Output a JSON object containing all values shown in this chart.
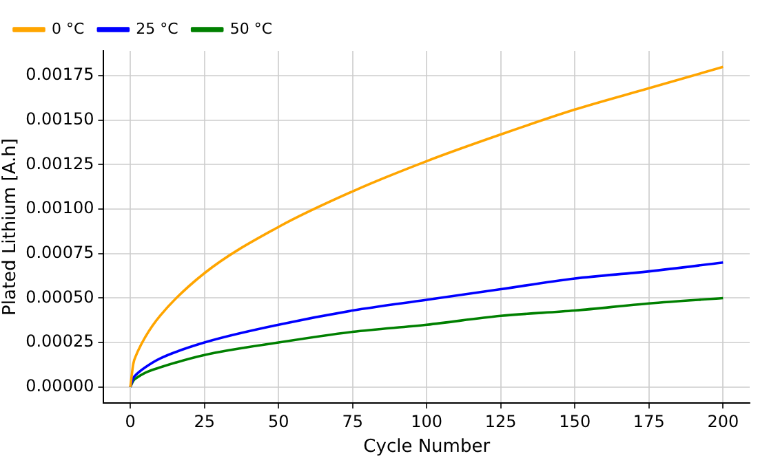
{
  "chart_data": {
    "type": "line",
    "xlabel": "Cycle Number",
    "ylabel": "Plated Lithium [A.h]",
    "x": [
      0,
      1,
      2,
      5,
      10,
      25,
      50,
      75,
      100,
      125,
      150,
      175,
      200
    ],
    "series": [
      {
        "name": "0 °C",
        "color": "#ffa500",
        "values": [
          0,
          0.00013,
          0.00018,
          0.00028,
          0.0004,
          0.00064,
          0.0009,
          0.0011,
          0.00127,
          0.00142,
          0.00156,
          0.00168,
          0.0018
        ]
      },
      {
        "name": "25 °C",
        "color": "#0000ff",
        "values": [
          0,
          5e-05,
          7e-05,
          0.00011,
          0.00016,
          0.00025,
          0.00035,
          0.00043,
          0.00049,
          0.00055,
          0.00061,
          0.00065,
          0.0007
        ]
      },
      {
        "name": "50 °C",
        "color": "#008000",
        "values": [
          0,
          3.5e-05,
          5e-05,
          8e-05,
          0.00011,
          0.00018,
          0.00025,
          0.00031,
          0.00035,
          0.0004,
          0.00043,
          0.00047,
          0.0005
        ]
      }
    ],
    "xlim": [
      -9,
      209
    ],
    "xticks": [
      0,
      25,
      50,
      75,
      100,
      125,
      150,
      175,
      200
    ],
    "ylim": [
      -9e-05,
      0.00189
    ],
    "yticks": [
      {
        "value": 0,
        "label": "0.00000"
      },
      {
        "value": 0.00025,
        "label": "0.00025"
      },
      {
        "value": 0.0005,
        "label": "0.00050"
      },
      {
        "value": 0.00075,
        "label": "0.00075"
      },
      {
        "value": 0.001,
        "label": "0.00100"
      },
      {
        "value": 0.00125,
        "label": "0.00125"
      },
      {
        "value": 0.0015,
        "label": "0.00150"
      },
      {
        "value": 0.00175,
        "label": "0.00175"
      }
    ],
    "grid": true,
    "legend": "top left",
    "marker": "none",
    "line_style": "solid"
  }
}
